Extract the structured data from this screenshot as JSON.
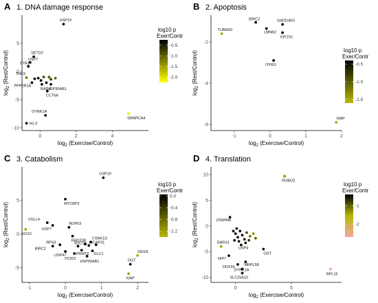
{
  "chart_data": [
    {
      "type": "scatter",
      "letter": "A",
      "title": "1. DNA damage response",
      "xlabel": "log2 (Exercise/Control)",
      "ylabel": "log2 (Rest/Control)",
      "xlim": [
        -1,
        6
      ],
      "ylim": [
        -10.5,
        10
      ],
      "xticks": [
        0,
        2,
        4
      ],
      "yticks": [
        -10,
        -5,
        0,
        5
      ],
      "legend": {
        "title_line1": "log10 p",
        "title_line2": "Exer/Contr",
        "range": [
          -2.25,
          -0.25
        ],
        "ticks": [
          -0.5,
          -1.0,
          -1.5,
          -2.0
        ],
        "colors": [
          "#ffff00",
          "#000000"
        ]
      },
      "points": [
        {
          "x": 1.3,
          "y": 8.4,
          "c": -0.3,
          "label": "USP19"
        },
        {
          "x": -0.35,
          "y": 2.6,
          "c": -0.3,
          "label": "SETD2"
        },
        {
          "x": -0.55,
          "y": 1.6,
          "c": -0.3,
          "label": "USP7"
        },
        {
          "x": -0.65,
          "y": 0.9,
          "c": -0.3,
          "label": "EYA1"
        },
        {
          "x": -0.75,
          "y": -1.1,
          "c": -1.2,
          "label": "TNKS"
        },
        {
          "x": -0.45,
          "y": -2.0,
          "c": -0.3,
          "label": "PPP2R1A"
        },
        {
          "x": 0.1,
          "y": -2.3,
          "c": -0.3,
          "label": "RADX"
        },
        {
          "x": 0.6,
          "y": -2.3,
          "c": -0.3,
          "label": "HSP90AB1"
        },
        {
          "x": 0.4,
          "y": -3.5,
          "c": -0.3,
          "label": "CCT6A"
        },
        {
          "x": 0.3,
          "y": -7.8,
          "c": -0.3,
          "label": "DYRK1A"
        },
        {
          "x": -0.75,
          "y": -9.2,
          "c": -0.3,
          "label": "H1-0"
        },
        {
          "x": 4.9,
          "y": -7.5,
          "c": -2.1,
          "label": "SMARCA4"
        },
        {
          "x": -0.3,
          "y": -1.3,
          "c": -0.3,
          "label": ""
        },
        {
          "x": -0.1,
          "y": -1.2,
          "c": -0.3,
          "label": ""
        },
        {
          "x": 0.05,
          "y": -1.6,
          "c": -0.3,
          "label": ""
        },
        {
          "x": 0.2,
          "y": -1.0,
          "c": -0.8,
          "label": ""
        },
        {
          "x": 0.35,
          "y": -2.0,
          "c": -0.3,
          "label": ""
        },
        {
          "x": 0.5,
          "y": -1.0,
          "c": -0.9,
          "label": ""
        },
        {
          "x": 0.6,
          "y": -1.4,
          "c": -0.7,
          "label": ""
        },
        {
          "x": 0.85,
          "y": -1.2,
          "c": -1.0,
          "label": ""
        }
      ]
    },
    {
      "type": "scatter",
      "letter": "B",
      "title": "2. Apoptosis",
      "xlabel": "log2 (Exercise/Control)",
      "ylabel": "log2 (Rest/Control)",
      "xlim": [
        -1.65,
        2.0
      ],
      "ylim": [
        -6.3,
        -0.7
      ],
      "xticks": [
        -1,
        0,
        1,
        2
      ],
      "yticks": [
        -6,
        -4,
        -2
      ],
      "legend": {
        "title_line1": "log10 p",
        "title_line2": "Exer/Contr",
        "range": [
          -1.6,
          -0.4
        ],
        "ticks": [
          -0.5,
          -1.0,
          -1.5
        ],
        "colors": [
          "#b8b800",
          "#000000"
        ]
      },
      "points": [
        {
          "x": -0.4,
          "y": -1.05,
          "c": -0.4,
          "label": "BIRC2"
        },
        {
          "x": 0.35,
          "y": -1.15,
          "c": -0.4,
          "label": "GADD45G"
        },
        {
          "x": -0.1,
          "y": -1.35,
          "c": -0.4,
          "label": "LMNB2"
        },
        {
          "x": 0.35,
          "y": -1.55,
          "c": -0.4,
          "label": "EIF2S1"
        },
        {
          "x": -1.35,
          "y": -1.6,
          "c": -1.5,
          "label": "TUBA3D"
        },
        {
          "x": 0.1,
          "y": -2.9,
          "c": -0.4,
          "label": "ITPR3"
        },
        {
          "x": 1.85,
          "y": -5.9,
          "c": -1.5,
          "label": "XIAP"
        }
      ]
    },
    {
      "type": "scatter",
      "letter": "C",
      "title": "3. Catabolism",
      "xlabel": "log2 (Exercise/Control)",
      "ylabel": "log2 (Rest/Control)",
      "xlim": [
        -1.2,
        2.3
      ],
      "ylim": [
        -7.2,
        10
      ],
      "xticks": [
        -1,
        0,
        1,
        2
      ],
      "yticks": [
        -5,
        0,
        5
      ],
      "legend": {
        "title_line1": "log10 p",
        "title_line2": "Exer/Contr",
        "range": [
          -1.4,
          0.05
        ],
        "ticks": [
          0.0,
          -0.4,
          -0.8,
          -1.2
        ],
        "colors": [
          "#b8b800",
          "#000000"
        ]
      },
      "points": [
        {
          "x": 1.05,
          "y": 8.4,
          "c": 0.0,
          "label": "USP19"
        },
        {
          "x": 0.0,
          "y": 5.2,
          "c": 0.0,
          "label": "MYCBP2"
        },
        {
          "x": -0.5,
          "y": 1.7,
          "c": 0.0,
          "label": "VGLL4"
        },
        {
          "x": -0.35,
          "y": 1.3,
          "c": 0.0,
          "label": "USP7"
        },
        {
          "x": -1.1,
          "y": 0.7,
          "c": -1.3,
          "label": "SOX2"
        },
        {
          "x": 0.1,
          "y": 1.0,
          "c": 0.0,
          "label": "NOP53"
        },
        {
          "x": 0.2,
          "y": -0.3,
          "c": 0.0,
          "label": "RAD23B"
        },
        {
          "x": -0.15,
          "y": -1.6,
          "c": 0.0,
          "label": "RPS3"
        },
        {
          "x": -0.35,
          "y": -1.8,
          "c": 0.0,
          "label": "BIRC2"
        },
        {
          "x": 0.0,
          "y": -2.6,
          "c": 0.0,
          "label": "USP47"
        },
        {
          "x": 0.35,
          "y": -1.8,
          "c": 0.0,
          "label": "SOCS5"
        },
        {
          "x": 0.45,
          "y": -2.4,
          "c": 0.0,
          "label": "PRMT6"
        },
        {
          "x": 0.7,
          "y": -1.2,
          "c": 0.0,
          "label": "CSNK1D"
        },
        {
          "x": 0.65,
          "y": -1.7,
          "c": 0.0,
          "label": "BCAP31"
        },
        {
          "x": 0.75,
          "y": -2.5,
          "c": 0.0,
          "label": "DLC1"
        },
        {
          "x": 0.25,
          "y": -2.9,
          "c": 0.0,
          "label": "PCID2"
        },
        {
          "x": 0.6,
          "y": -3.3,
          "c": 0.0,
          "label": "HSP90AB1"
        },
        {
          "x": 2.0,
          "y": -3.2,
          "c": -1.3,
          "label": "DESI1"
        },
        {
          "x": 1.8,
          "y": -4.5,
          "c": 0.0,
          "label": "OGT"
        },
        {
          "x": 1.75,
          "y": -5.9,
          "c": -1.2,
          "label": "XIAP"
        },
        {
          "x": 0.55,
          "y": -1.5,
          "c": 0.0,
          "label": ""
        },
        {
          "x": 0.85,
          "y": -1.6,
          "c": 0.0,
          "label": ""
        }
      ]
    },
    {
      "type": "scatter",
      "letter": "D",
      "title": "4. Translation",
      "xlabel": "log2 (Exercise/Control)",
      "ylabel": "log2 (Rest/Control)",
      "xlim": [
        -2.2,
        9.5
      ],
      "ylim": [
        -11,
        11.5
      ],
      "xticks": [
        0,
        5
      ],
      "yticks": [
        -10,
        -5,
        0,
        5,
        10
      ],
      "legend": {
        "title_line1": "log10 p",
        "title_line2": "Exer/Contr",
        "range": [
          -2.7,
          -0.4
        ],
        "ticks": [
          -1,
          -2
        ],
        "colors": [
          "#f4a6a6",
          "#b8b800",
          "#000000"
        ]
      },
      "points": [
        {
          "x": 4.4,
          "y": 9.7,
          "c": -1.3,
          "label": "ROBO2"
        },
        {
          "x": -0.5,
          "y": 1.7,
          "c": -0.5,
          "label": "ZSWIM8"
        },
        {
          "x": -1.3,
          "y": -4.0,
          "c": -1.4,
          "label": "DARS1"
        },
        {
          "x": 0.5,
          "y": -3.7,
          "c": -0.5,
          "label": "USP4"
        },
        {
          "x": -0.6,
          "y": -5.8,
          "c": -0.5,
          "label": "NIP7"
        },
        {
          "x": 0.9,
          "y": -7.0,
          "c": -0.5,
          "label": "MRPL58"
        },
        {
          "x": 0.2,
          "y": -7.5,
          "c": -0.5,
          "label": "DDX56"
        },
        {
          "x": 0.6,
          "y": -8.4,
          "c": -0.5,
          "label": "DYRK1A"
        },
        {
          "x": 0.6,
          "y": -9.2,
          "c": -0.5,
          "label": "SLC25A10"
        },
        {
          "x": 2.5,
          "y": -4.5,
          "c": -0.5,
          "label": "OGT"
        },
        {
          "x": 8.5,
          "y": -8.4,
          "c": -2.6,
          "label": "RPL15"
        },
        {
          "x": -0.2,
          "y": -1.0,
          "c": -0.5,
          "label": ""
        },
        {
          "x": 0.0,
          "y": -1.5,
          "c": -0.5,
          "label": ""
        },
        {
          "x": 0.2,
          "y": -2.2,
          "c": -0.5,
          "label": ""
        },
        {
          "x": 0.4,
          "y": -1.0,
          "c": -0.5,
          "label": ""
        },
        {
          "x": 0.6,
          "y": -1.8,
          "c": -0.5,
          "label": ""
        },
        {
          "x": 0.8,
          "y": -2.6,
          "c": -0.5,
          "label": ""
        },
        {
          "x": 1.0,
          "y": -1.3,
          "c": -0.9,
          "label": ""
        },
        {
          "x": 0.3,
          "y": -3.0,
          "c": -0.5,
          "label": ""
        },
        {
          "x": -0.1,
          "y": -2.8,
          "c": -0.5,
          "label": ""
        },
        {
          "x": 1.3,
          "y": -2.0,
          "c": -1.1,
          "label": ""
        },
        {
          "x": 1.6,
          "y": -1.5,
          "c": -1.3,
          "label": ""
        },
        {
          "x": 0.9,
          "y": -3.3,
          "c": -0.5,
          "label": ""
        },
        {
          "x": 1.2,
          "y": -2.8,
          "c": -0.7,
          "label": ""
        },
        {
          "x": 0.1,
          "y": -0.5,
          "c": -0.5,
          "label": ""
        },
        {
          "x": 1.8,
          "y": -2.4,
          "c": -1.0,
          "label": ""
        }
      ]
    }
  ]
}
